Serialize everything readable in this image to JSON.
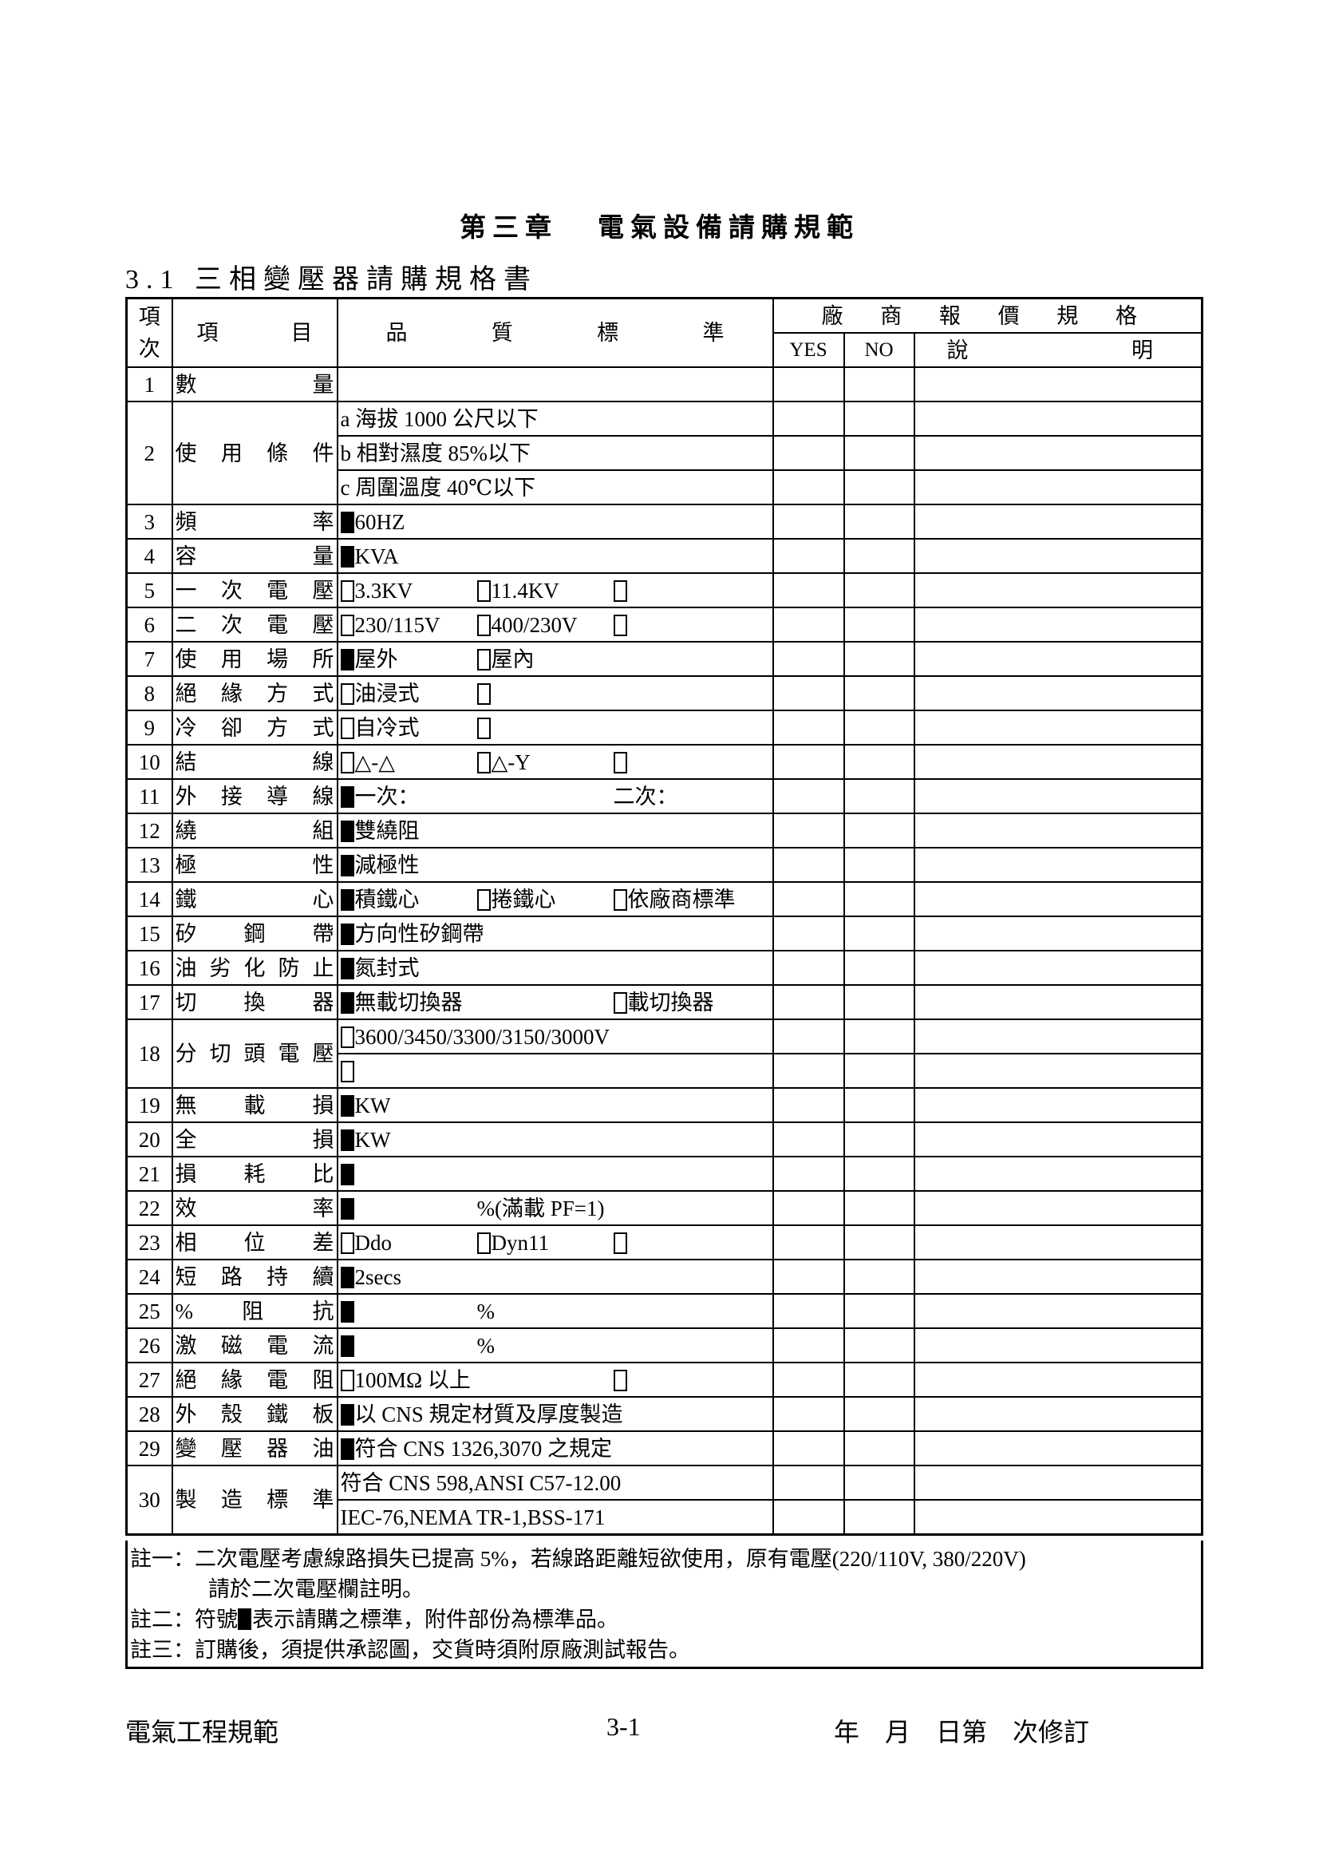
{
  "chapter_title": {
    "chapter": "第三章",
    "name": "電氣設備請購規範"
  },
  "section_title": "3.1 三相變壓器請購規格書",
  "header": {
    "item_no": "項次",
    "item": "項目",
    "quality": "品質標準",
    "vendor": "廠商報價規格",
    "yes": "YES",
    "no": "NO",
    "remark": "說明"
  },
  "rows": [
    {
      "no": "1",
      "name": "數量",
      "lines": [
        []
      ]
    },
    {
      "no": "2",
      "name": "使用條件",
      "lines": [
        [
          {
            "text": "a 海拔 1000 公尺以下"
          }
        ],
        [
          {
            "text": "b 相對濕度 85%以下"
          }
        ],
        [
          {
            "text": "c 周圍溫度 40℃以下"
          }
        ]
      ]
    },
    {
      "no": "3",
      "name": "頻率",
      "lines": [
        [
          {
            "box": "filled",
            "text": "60HZ"
          }
        ]
      ]
    },
    {
      "no": "4",
      "name": "容量",
      "lines": [
        [
          {
            "box": "filled",
            "text": "KVA"
          }
        ]
      ]
    },
    {
      "no": "5",
      "name": "一次電壓",
      "lines": [
        [
          {
            "box": "empty",
            "text": "3.3KV"
          },
          {
            "box": "empty",
            "text": "11.4KV"
          },
          {
            "box": "empty",
            "text": ""
          }
        ]
      ]
    },
    {
      "no": "6",
      "name": "二次電壓",
      "lines": [
        [
          {
            "box": "empty",
            "text": "230/115V"
          },
          {
            "box": "empty",
            "text": "400/230V"
          },
          {
            "box": "empty",
            "text": ""
          }
        ]
      ]
    },
    {
      "no": "7",
      "name": "使用場所",
      "lines": [
        [
          {
            "box": "filled",
            "text": "屋外"
          },
          {
            "box": "empty",
            "text": "屋內"
          }
        ]
      ]
    },
    {
      "no": "8",
      "name": "絕緣方式",
      "lines": [
        [
          {
            "box": "empty",
            "text": "油浸式"
          },
          {
            "box": "empty",
            "text": ""
          }
        ]
      ]
    },
    {
      "no": "9",
      "name": "冷卻方式",
      "lines": [
        [
          {
            "box": "empty",
            "text": "自冷式"
          },
          {
            "box": "empty",
            "text": ""
          }
        ]
      ]
    },
    {
      "no": "10",
      "name": "結線",
      "lines": [
        [
          {
            "box": "empty",
            "text": "△-△"
          },
          {
            "box": "empty",
            "text": "△-Y"
          },
          {
            "box": "empty",
            "text": ""
          }
        ]
      ]
    },
    {
      "no": "11",
      "name": "外接導線",
      "lines": [
        [
          {
            "box": "filled",
            "text": "一次："
          },
          {
            "text": ""
          },
          {
            "text": "二次："
          }
        ]
      ]
    },
    {
      "no": "12",
      "name": "繞組",
      "lines": [
        [
          {
            "box": "filled",
            "text": "雙繞阻"
          }
        ]
      ]
    },
    {
      "no": "13",
      "name": "極性",
      "lines": [
        [
          {
            "box": "filled",
            "text": "減極性"
          }
        ]
      ]
    },
    {
      "no": "14",
      "name": "鐵心",
      "lines": [
        [
          {
            "box": "filled",
            "text": "積鐵心"
          },
          {
            "box": "empty",
            "text": "捲鐵心"
          },
          {
            "box": "empty",
            "text": "依廠商標準"
          }
        ]
      ]
    },
    {
      "no": "15",
      "name": "矽鋼帶",
      "lines": [
        [
          {
            "box": "filled",
            "text": "方向性矽鋼帶"
          }
        ]
      ]
    },
    {
      "no": "16",
      "name": "油劣化防止",
      "lines": [
        [
          {
            "box": "filled",
            "text": "氮封式"
          }
        ]
      ]
    },
    {
      "no": "17",
      "name": "切換器",
      "lines": [
        [
          {
            "box": "filled",
            "text": "無載切換器"
          },
          {
            "text": ""
          },
          {
            "box": "empty",
            "text": "載切換器"
          }
        ]
      ]
    },
    {
      "no": "18",
      "name": "分切頭電壓",
      "lines": [
        [
          {
            "box": "empty",
            "text": "3600/3450/3300/3150/3000V"
          }
        ],
        [
          {
            "box": "empty",
            "text": ""
          }
        ]
      ]
    },
    {
      "no": "19",
      "name": "無載損",
      "lines": [
        [
          {
            "box": "filled",
            "text": "KW"
          }
        ]
      ]
    },
    {
      "no": "20",
      "name": "全損",
      "lines": [
        [
          {
            "box": "filled",
            "text": "KW"
          }
        ]
      ]
    },
    {
      "no": "21",
      "name": "損耗比",
      "lines": [
        [
          {
            "box": "filled",
            "text": ""
          }
        ]
      ]
    },
    {
      "no": "22",
      "name": "效率",
      "lines": [
        [
          {
            "box": "filled",
            "text": ""
          },
          {
            "text": "%(滿載 PF=1)"
          }
        ]
      ]
    },
    {
      "no": "23",
      "name": "相位差",
      "lines": [
        [
          {
            "box": "empty",
            "text": "Ddo"
          },
          {
            "box": "empty",
            "text": "Dyn11"
          },
          {
            "box": "empty",
            "text": ""
          }
        ]
      ]
    },
    {
      "no": "24",
      "name": "短路持續",
      "lines": [
        [
          {
            "box": "filled",
            "text": "2secs"
          }
        ]
      ]
    },
    {
      "no": "25",
      "name": "%阻抗",
      "lines": [
        [
          {
            "box": "filled",
            "text": ""
          },
          {
            "text": "%"
          }
        ]
      ]
    },
    {
      "no": "26",
      "name": "激磁電流",
      "lines": [
        [
          {
            "box": "filled",
            "text": ""
          },
          {
            "text": "%"
          }
        ]
      ]
    },
    {
      "no": "27",
      "name": "絕緣電阻",
      "lines": [
        [
          {
            "box": "empty",
            "text": "100MΩ 以上"
          },
          {
            "text": ""
          },
          {
            "box": "empty",
            "text": ""
          }
        ]
      ]
    },
    {
      "no": "28",
      "name": "外殼鐵板",
      "lines": [
        [
          {
            "box": "filled",
            "text": "以 CNS 規定材質及厚度製造"
          }
        ]
      ]
    },
    {
      "no": "29",
      "name": "變壓器油",
      "lines": [
        [
          {
            "box": "filled",
            "text": "符合 CNS 1326,3070 之規定"
          }
        ]
      ]
    },
    {
      "no": "30",
      "name": "製造標準",
      "lines": [
        [
          {
            "text": "符合 CNS 598,ANSI C57-12.00"
          }
        ],
        [
          {
            "text": "IEC-76,NEMA TR-1,BSS-171"
          }
        ]
      ]
    }
  ],
  "notes": {
    "note1_label": "註一：",
    "note1_line1": "二次電壓考慮線路損失已提高 5%，若線路距離短欲使用，原有電壓(220/110V, 380/220V)",
    "note1_line2": "請於二次電壓欄註明。",
    "note2_label": "註二：",
    "note2_pre": "符號",
    "note2_post": "表示請購之標準，附件部份為標準品。",
    "note3_label": "註三：",
    "note3_text": "訂購後，須提供承認圖，交貨時須附原廠測試報告。"
  },
  "footer": {
    "left": "電氣工程規範",
    "page": "3-1",
    "revision": "年　月　日第　次修訂"
  }
}
